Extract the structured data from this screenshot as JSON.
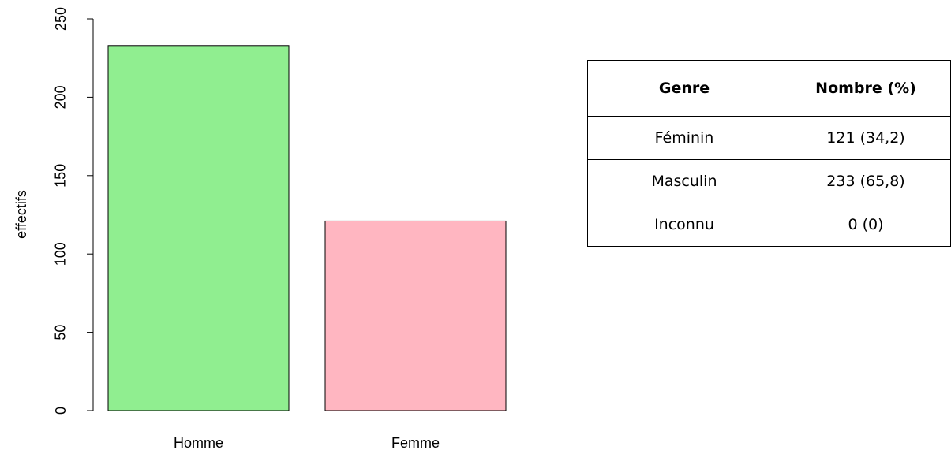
{
  "chart_data": {
    "type": "bar",
    "ylabel": "effectifs",
    "categories": [
      "Homme",
      "Femme"
    ],
    "values": [
      233,
      121
    ],
    "colors": [
      "#90ee90",
      "#ffb6c1"
    ],
    "ylim": [
      0,
      250
    ],
    "yticks": [
      0,
      50,
      100,
      150,
      200,
      250
    ],
    "grid": false
  },
  "table": {
    "header": [
      "Genre",
      "Nombre (%)"
    ],
    "rows": [
      [
        "Féminin",
        "121 (34,2)"
      ],
      [
        "Masculin",
        "233 (65,8)"
      ],
      [
        "Inconnu",
        "0 (0)"
      ]
    ]
  }
}
